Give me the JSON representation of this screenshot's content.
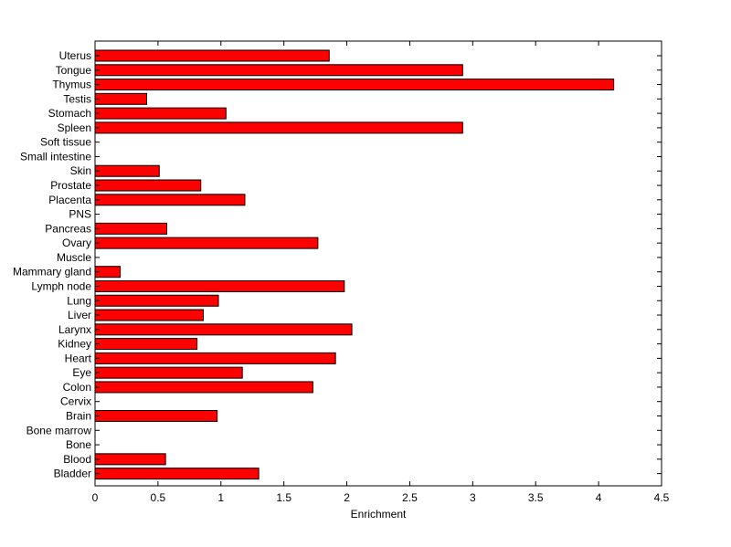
{
  "chart_data": {
    "type": "bar",
    "orientation": "horizontal",
    "title": "",
    "xlabel": "Enrichment",
    "ylabel": "",
    "xlim": [
      0,
      4.5
    ],
    "xticks": [
      "0",
      "0.5",
      "1",
      "1.5",
      "2",
      "2.5",
      "3",
      "3.5",
      "4",
      "4.5"
    ],
    "grid": false,
    "legend": "none",
    "bar_color": "#ff0000",
    "bar_edge_color": "#000000",
    "categories": [
      "Uterus",
      "Tongue",
      "Thymus",
      "Testis",
      "Stomach",
      "Spleen",
      "Soft tissue",
      "Small intestine",
      "Skin",
      "Prostate",
      "Placenta",
      "PNS",
      "Pancreas",
      "Ovary",
      "Muscle",
      "Mammary gland",
      "Lymph node",
      "Lung",
      "Liver",
      "Larynx",
      "Kidney",
      "Heart",
      "Eye",
      "Colon",
      "Cervix",
      "Brain",
      "Bone marrow",
      "Bone",
      "Blood",
      "Bladder"
    ],
    "values": [
      1.86,
      2.92,
      4.12,
      0.41,
      1.04,
      2.92,
      0,
      0,
      0.51,
      0.84,
      1.19,
      0,
      0.57,
      1.77,
      0,
      0.2,
      1.98,
      0.98,
      0.86,
      2.04,
      0.81,
      1.91,
      1.17,
      1.73,
      0,
      0.97,
      0,
      0,
      0.56,
      1.3
    ]
  }
}
